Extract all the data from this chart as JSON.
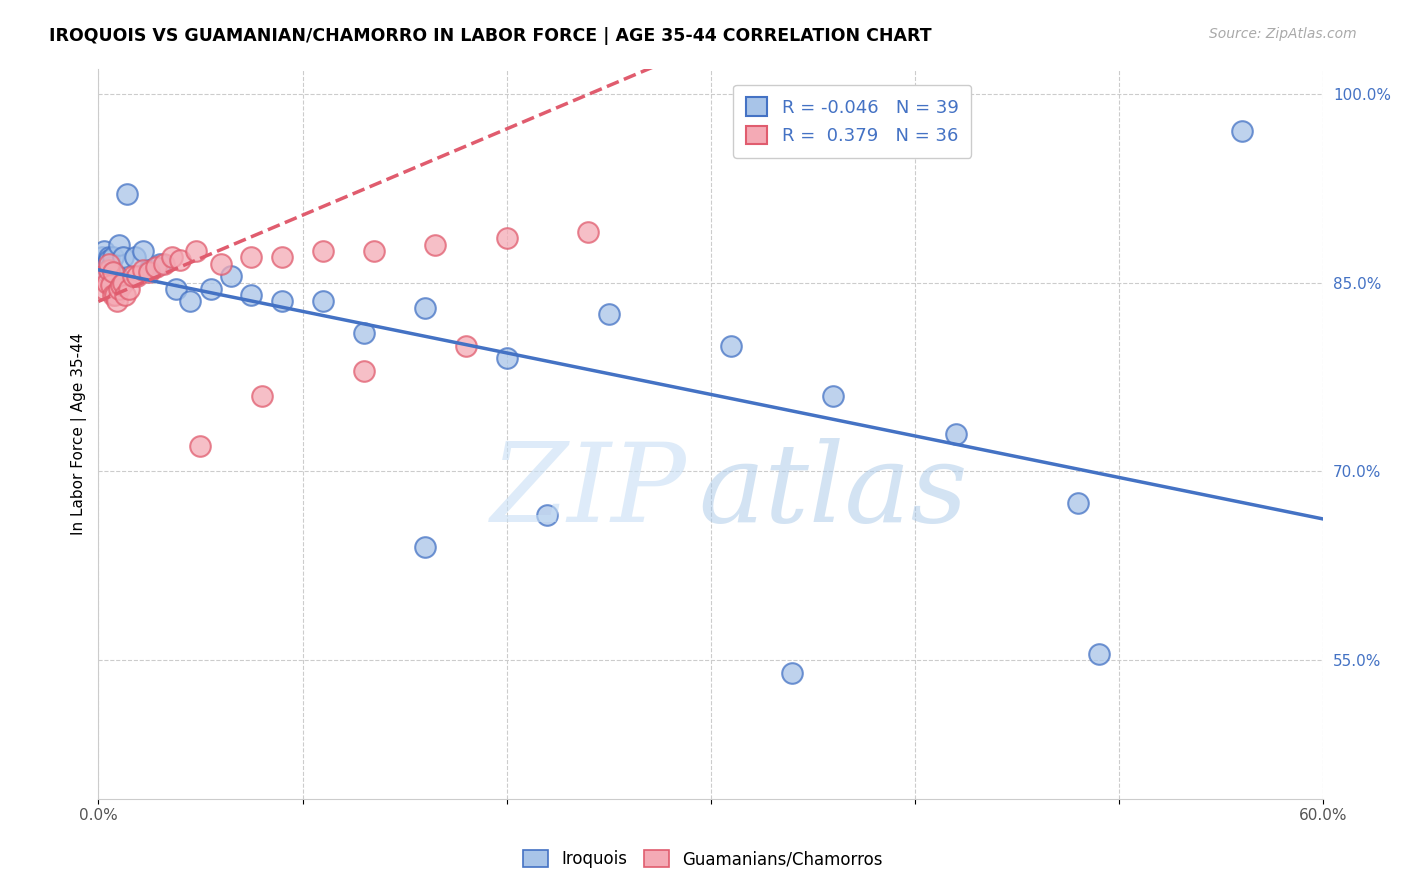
{
  "title": "IROQUOIS VS GUAMANIAN/CHAMORRO IN LABOR FORCE | AGE 35-44 CORRELATION CHART",
  "source": "Source: ZipAtlas.com",
  "ylabel": "In Labor Force | Age 35-44",
  "xlim": [
    0.0,
    0.6
  ],
  "ylim": [
    0.44,
    1.02
  ],
  "xticks": [
    0.0,
    0.1,
    0.2,
    0.3,
    0.4,
    0.5,
    0.6
  ],
  "xticklabels": [
    "0.0%",
    "",
    "",
    "",
    "",
    "",
    "60.0%"
  ],
  "yticks_right": [
    0.55,
    0.7,
    0.85,
    1.0
  ],
  "ytick_labels_right": [
    "55.0%",
    "70.0%",
    "85.0%",
    "100.0%"
  ],
  "legend_r_iroquois": "-0.046",
  "legend_n_iroquois": "39",
  "legend_r_chamorro": "0.379",
  "legend_n_chamorro": "36",
  "iroquois_color": "#a8c4e8",
  "chamorro_color": "#f4aab5",
  "trend_iroquois_color": "#4472c4",
  "trend_chamorro_color": "#e05c6e",
  "iroquois_x": [
    0.002,
    0.003,
    0.004,
    0.004,
    0.005,
    0.005,
    0.005,
    0.006,
    0.007,
    0.007,
    0.008,
    0.009,
    0.01,
    0.012,
    0.014,
    0.018,
    0.022,
    0.025,
    0.03,
    0.038,
    0.045,
    0.055,
    0.065,
    0.075,
    0.09,
    0.11,
    0.13,
    0.16,
    0.2,
    0.25,
    0.31,
    0.36,
    0.42,
    0.48,
    0.16,
    0.22,
    0.34,
    0.49,
    0.56
  ],
  "iroquois_y": [
    0.87,
    0.875,
    0.865,
    0.855,
    0.87,
    0.868,
    0.86,
    0.862,
    0.87,
    0.858,
    0.848,
    0.855,
    0.88,
    0.87,
    0.92,
    0.87,
    0.875,
    0.86,
    0.865,
    0.845,
    0.835,
    0.845,
    0.855,
    0.84,
    0.835,
    0.835,
    0.81,
    0.83,
    0.79,
    0.825,
    0.8,
    0.76,
    0.73,
    0.675,
    0.64,
    0.665,
    0.54,
    0.555,
    0.97
  ],
  "chamorro_x": [
    0.002,
    0.003,
    0.004,
    0.005,
    0.005,
    0.006,
    0.007,
    0.007,
    0.008,
    0.009,
    0.01,
    0.011,
    0.012,
    0.013,
    0.015,
    0.017,
    0.019,
    0.022,
    0.025,
    0.028,
    0.032,
    0.036,
    0.04,
    0.048,
    0.06,
    0.075,
    0.09,
    0.11,
    0.135,
    0.165,
    0.2,
    0.24,
    0.05,
    0.08,
    0.13,
    0.18
  ],
  "chamorro_y": [
    0.855,
    0.845,
    0.85,
    0.86,
    0.865,
    0.848,
    0.84,
    0.858,
    0.84,
    0.835,
    0.845,
    0.848,
    0.85,
    0.84,
    0.845,
    0.855,
    0.855,
    0.86,
    0.858,
    0.862,
    0.865,
    0.87,
    0.868,
    0.875,
    0.865,
    0.87,
    0.87,
    0.875,
    0.875,
    0.88,
    0.885,
    0.89,
    0.72,
    0.76,
    0.78,
    0.8
  ]
}
